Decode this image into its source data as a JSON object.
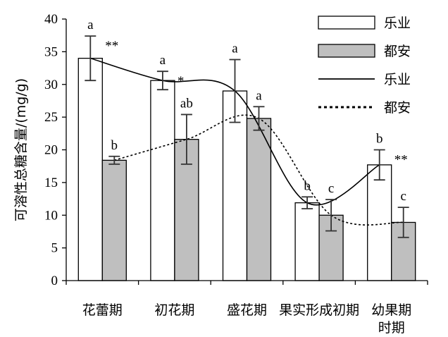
{
  "chart_data": {
    "type": "bar",
    "title": "",
    "xlabel": "",
    "ylabel": "可溶性总糖含量/(mg/g)",
    "ylim": [
      0,
      40
    ],
    "yticks": [
      0,
      5,
      10,
      15,
      20,
      25,
      30,
      35,
      40
    ],
    "ytick_labels": [
      "0",
      "5",
      "10",
      "15",
      "20",
      "25",
      "30",
      "35",
      "40"
    ],
    "categories": [
      [
        "花蕾期"
      ],
      [
        "初花期"
      ],
      [
        "盛花期"
      ],
      [
        "果实形成初期"
      ],
      [
        "幼果期",
        "时期"
      ]
    ],
    "legend_position": "top-right",
    "series": [
      {
        "name": "乐业",
        "kind": "bar",
        "fill": "#ffffff",
        "values": [
          34.0,
          30.6,
          29.0,
          11.9,
          17.7
        ],
        "errors": [
          3.4,
          1.4,
          4.8,
          0.9,
          2.3
        ],
        "sig": [
          "a",
          "a",
          "a",
          "b",
          "b"
        ]
      },
      {
        "name": "都安",
        "kind": "bar",
        "fill": "#bfbfbf",
        "values": [
          18.4,
          21.6,
          24.8,
          10.0,
          8.9
        ],
        "errors": [
          0.6,
          3.8,
          1.8,
          2.4,
          2.3
        ],
        "sig": [
          "b",
          "ab",
          "a",
          "c",
          "c"
        ]
      },
      {
        "name": "乐业",
        "kind": "line",
        "style": "solid",
        "color": "#000000",
        "values": [
          34.0,
          30.6,
          29.0,
          11.9,
          17.7
        ]
      },
      {
        "name": "都安",
        "kind": "line",
        "style": "dotted",
        "color": "#000000",
        "values": [
          18.4,
          21.6,
          24.8,
          10.0,
          8.9
        ]
      }
    ],
    "between_group_marks": [
      "**",
      "*",
      "",
      "",
      "**"
    ]
  }
}
